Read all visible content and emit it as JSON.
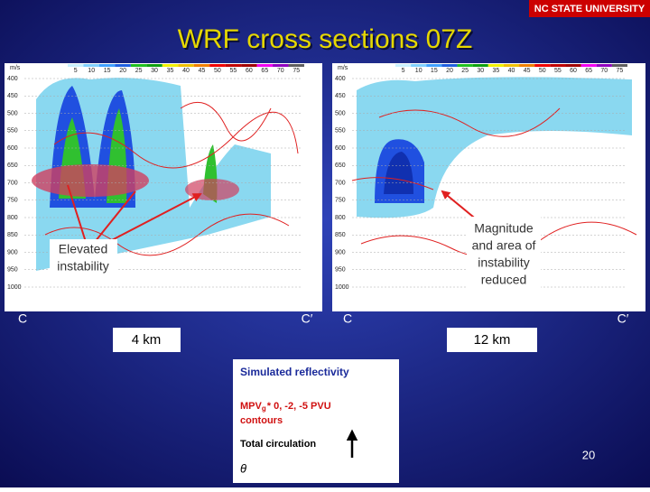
{
  "header": {
    "title": "WRF cross sections 07Z",
    "logo": "NC STATE UNIVERSITY"
  },
  "panels": [
    {
      "unit": "m/s",
      "colorbar": [
        "5",
        "10",
        "15",
        "20",
        "25",
        "30",
        "35",
        "40",
        "45",
        "50",
        "55",
        "60",
        "65",
        "70",
        "75"
      ],
      "pressure_levels": [
        "400",
        "450",
        "500",
        "550",
        "600",
        "650",
        "700",
        "750",
        "800",
        "850",
        "900",
        "950",
        "1000"
      ],
      "left_label": "C",
      "right_label": "C′",
      "scale": "4 km",
      "annotation": [
        "Elevated",
        "instability"
      ]
    },
    {
      "unit": "m/s",
      "colorbar": [
        "5",
        "10",
        "15",
        "20",
        "25",
        "30",
        "35",
        "40",
        "45",
        "50",
        "55",
        "60",
        "65",
        "70",
        "75"
      ],
      "pressure_levels": [
        "400",
        "450",
        "500",
        "550",
        "600",
        "650",
        "700",
        "750",
        "800",
        "850",
        "900",
        "950",
        "1000"
      ],
      "left_label": "C",
      "right_label": "C′",
      "scale": "12 km",
      "annotation": [
        "Magnitude",
        "and area of",
        "instability",
        "reduced"
      ]
    }
  ],
  "legend": {
    "reflectivity": "Simulated reflectivity",
    "mpv": [
      "MPV",
      "g",
      "* 0, -2, -5 PVU",
      "contours"
    ],
    "circulation": "Total circulation",
    "theta": "θ"
  },
  "page_number": "20"
}
